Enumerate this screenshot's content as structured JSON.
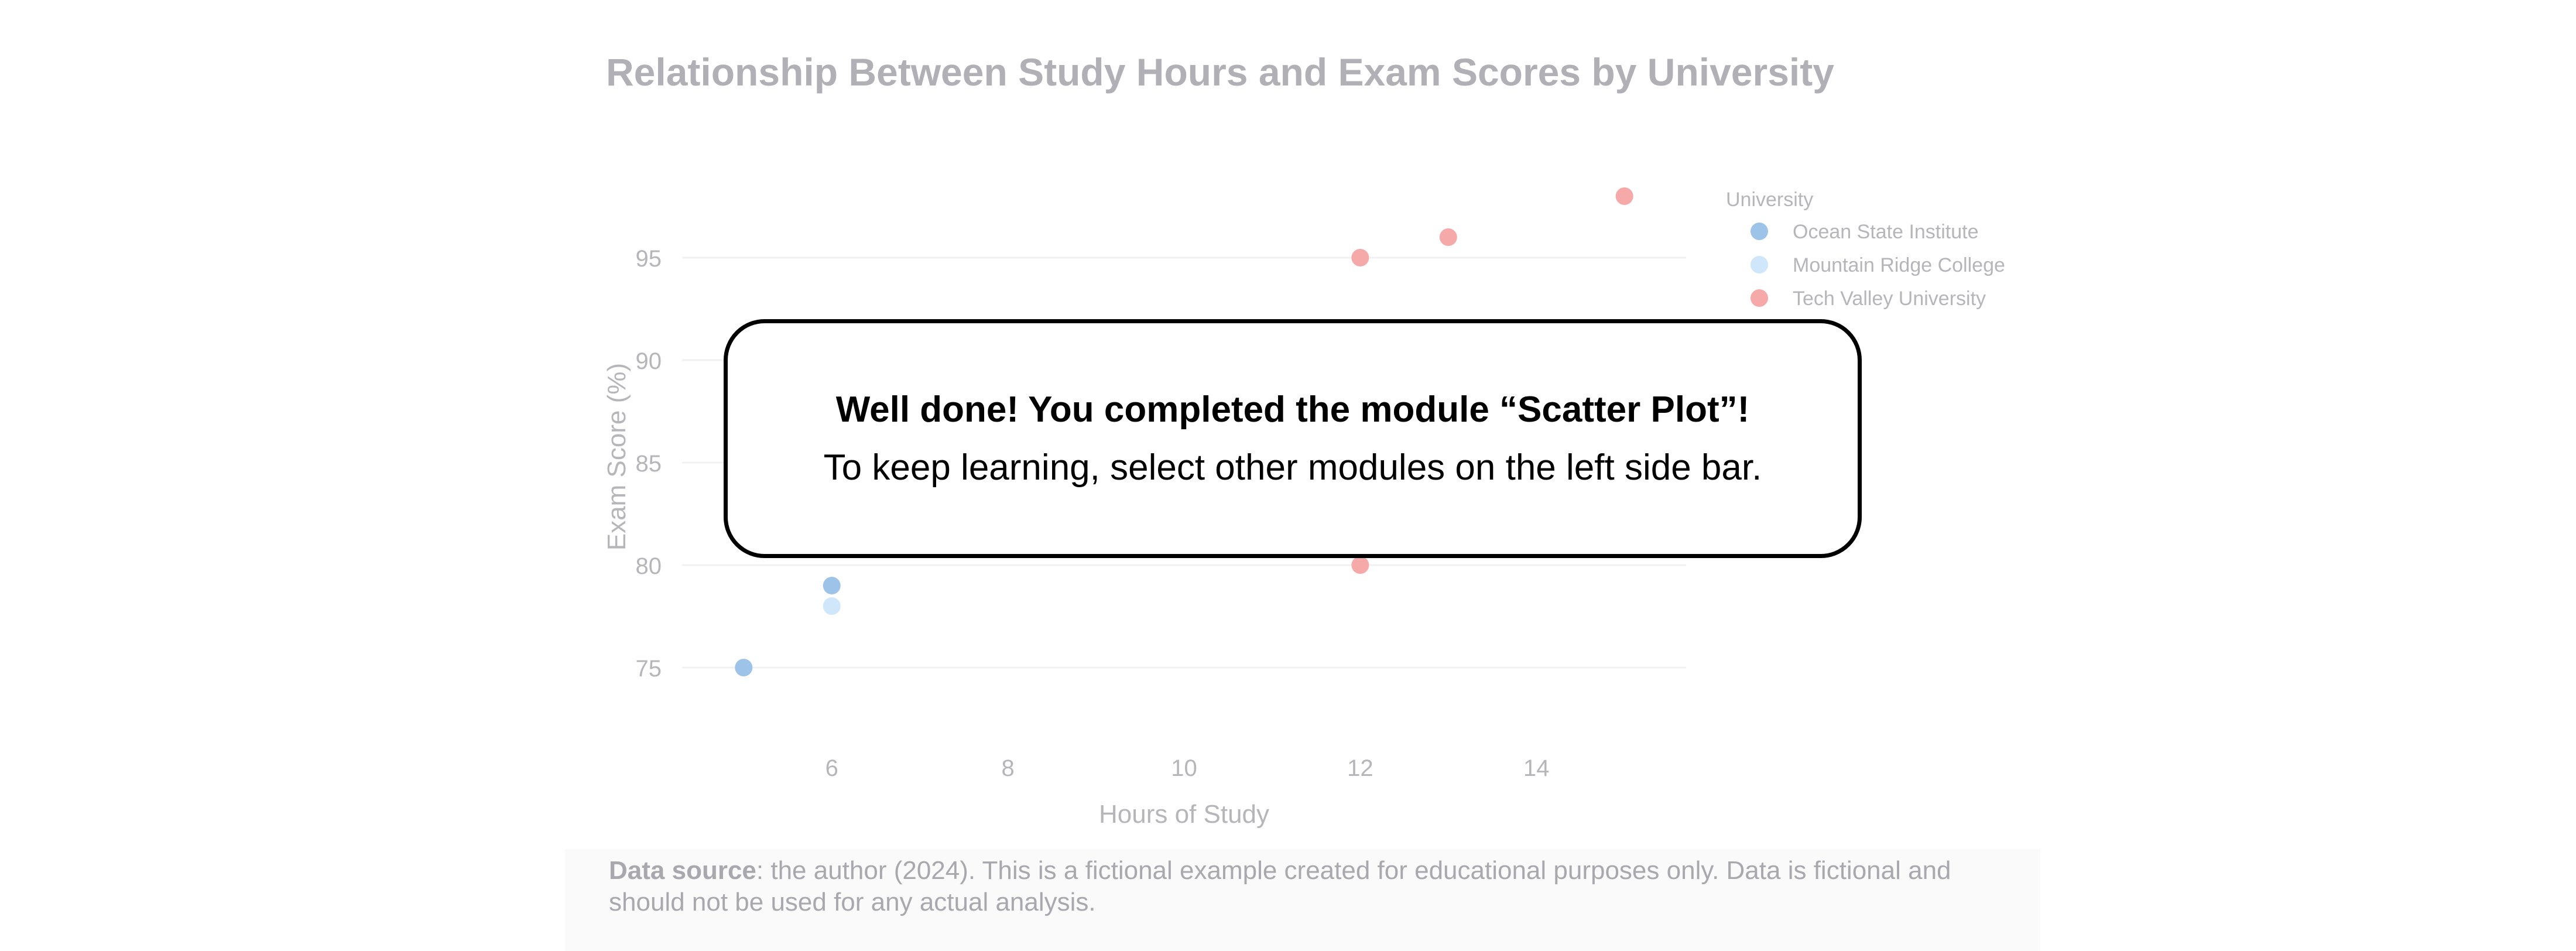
{
  "chart_data": {
    "type": "scatter",
    "title": "Relationship Between Study Hours and Exam Scores by University",
    "xlabel": "Hours of Study",
    "ylabel": "Exam Score (%)",
    "xlim": [
      4.3,
      15.7
    ],
    "ylim": [
      72,
      99
    ],
    "xticks": [
      6,
      8,
      10,
      12,
      14
    ],
    "yticks": [
      75,
      80,
      85,
      90,
      95
    ],
    "grid": "horizontal",
    "legend_title": "University",
    "legend_position": "top-right",
    "series": [
      {
        "name": "Ocean State Institute",
        "color": "#9dc3e8",
        "points": [
          [
            5,
            75
          ],
          [
            6,
            79
          ]
        ]
      },
      {
        "name": "Mountain Ridge College",
        "color": "#cfe6fb",
        "points": [
          [
            6,
            78
          ]
        ]
      },
      {
        "name": "Tech Valley University",
        "color": "#f5a9a9",
        "points": [
          [
            12,
            80
          ],
          [
            12,
            95
          ],
          [
            13,
            96
          ],
          [
            15,
            98
          ]
        ]
      }
    ]
  },
  "footer": {
    "source_label": "Data source",
    "source_text": ": the author (2024). This is a fictional example created for educational purposes only. Data is fictional and should not be used for any actual analysis."
  },
  "overlay": {
    "title": "Well done! You completed the module “Scatter Plot”!",
    "message": "To keep learning, select other modules on the left side bar."
  }
}
